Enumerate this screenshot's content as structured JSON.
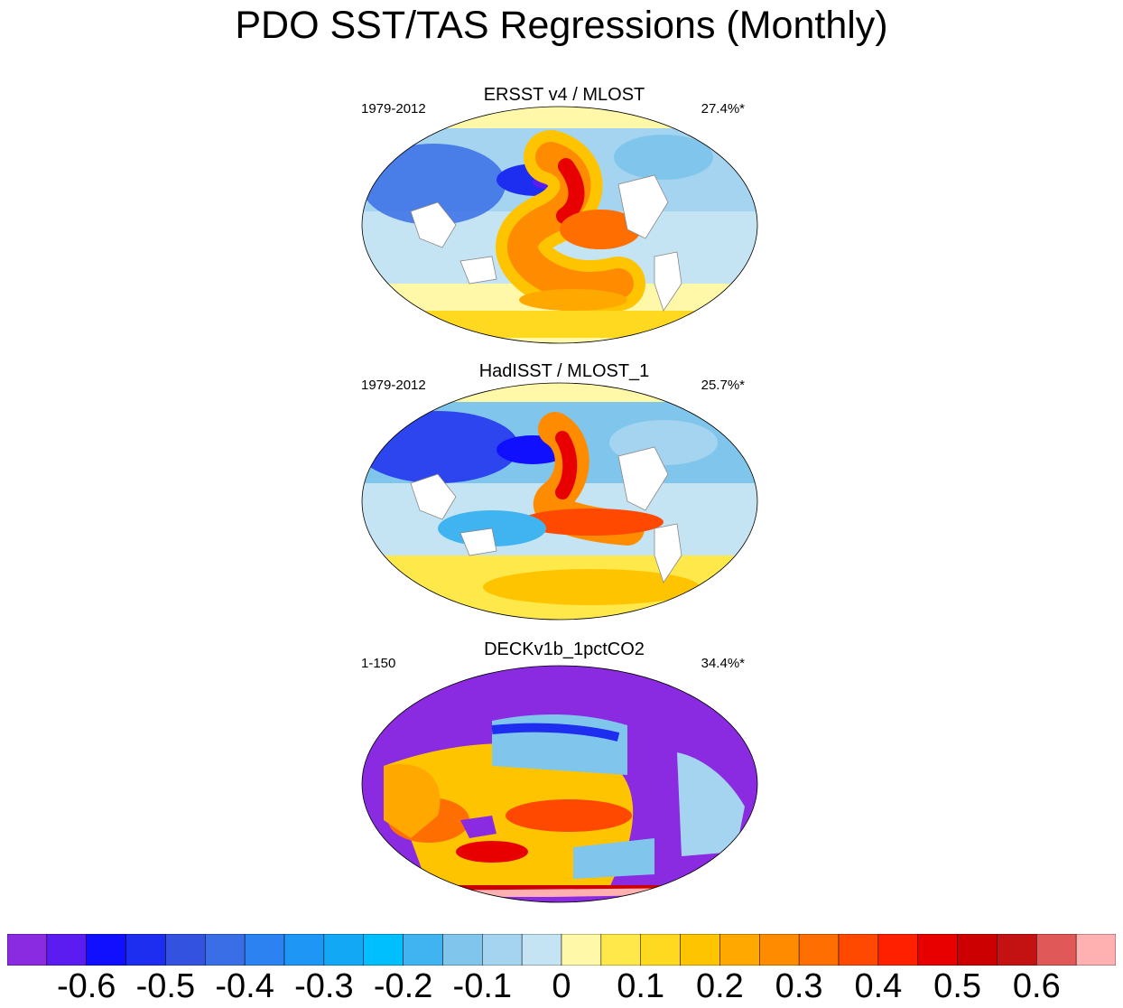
{
  "title": "PDO SST/TAS Regressions (Monthly)",
  "chart_data": [
    {
      "type": "heatmap",
      "title": "ERSST v4 / MLOST",
      "period": "1979-2012",
      "variance": "27.4%*",
      "projection": "global map"
    },
    {
      "type": "heatmap",
      "title": "HadISST / MLOST_1",
      "period": "1979-2012",
      "variance": "25.7%*",
      "projection": "global map"
    },
    {
      "type": "heatmap",
      "title": "DECKv1b_1pctCO2",
      "period": "1-150",
      "variance": "34.4%*",
      "projection": "global map"
    }
  ],
  "colorbar": {
    "colors": [
      "#8a2be2",
      "#5a1cf0",
      "#1010ff",
      "#1e2ef0",
      "#3352e0",
      "#3a6ee6",
      "#2b82f0",
      "#1e96f5",
      "#12a8f5",
      "#00bfff",
      "#3fb4f0",
      "#80c6ec",
      "#a4d4f0",
      "#c4e4f4",
      "#fff8a8",
      "#ffe84a",
      "#ffd820",
      "#ffc400",
      "#ffa800",
      "#ff8c00",
      "#ff6e00",
      "#ff4800",
      "#ff2000",
      "#e80000",
      "#cc0000",
      "#c41212",
      "#e05858",
      "#ffb0b0"
    ],
    "labels": [
      "-0.6",
      "-0.5",
      "-0.4",
      "-0.3",
      "-0.2",
      "-0.1",
      "0",
      "0.1",
      "0.2",
      "0.3",
      "0.4",
      "0.5",
      "0.6"
    ]
  }
}
